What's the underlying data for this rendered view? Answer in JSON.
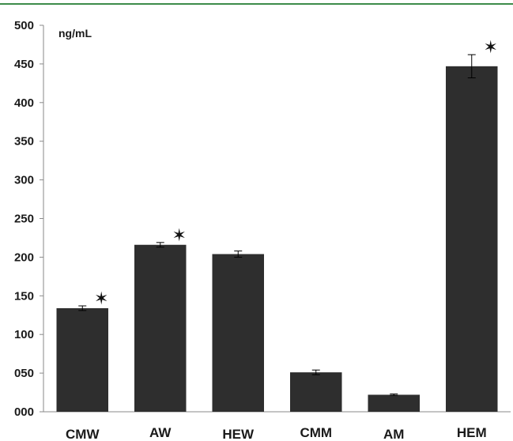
{
  "chart_data": {
    "type": "bar",
    "unit_label": "ng/mL",
    "categories": [
      "CMW",
      "AW",
      "HEW",
      "CMM",
      "AM",
      "HEM"
    ],
    "values": [
      134,
      216,
      204,
      51,
      22,
      447
    ],
    "errors": [
      3,
      3,
      4,
      3,
      1,
      15
    ],
    "significant": [
      true,
      true,
      false,
      false,
      false,
      true
    ],
    "ylim": [
      0,
      500
    ],
    "yticks": [
      "000",
      "050",
      "100",
      "150",
      "200",
      "250",
      "300",
      "350",
      "400",
      "450",
      "500"
    ],
    "significance_marker": "✶",
    "bar_color": "#2e2e2e",
    "top_rule_color": "#3c8c4a",
    "grid": false
  }
}
